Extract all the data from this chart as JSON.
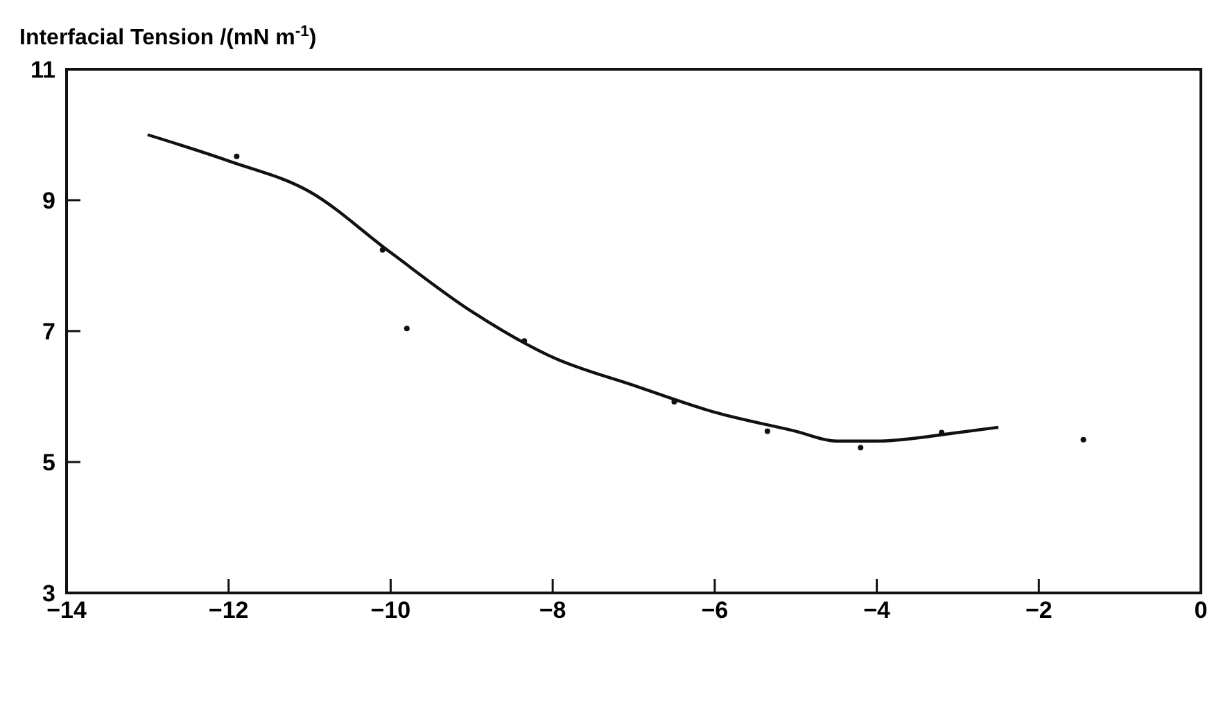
{
  "chart_data": {
    "type": "line",
    "ylabel": "Interfacial Tension /(mN m$^{-1}$)",
    "xlim": [
      -14,
      0
    ],
    "xticks": [
      -14,
      -12,
      -10,
      -8,
      -6,
      -4,
      -2,
      0
    ],
    "ylim": [
      3,
      11
    ],
    "yticks": [
      3,
      5,
      7,
      9,
      11
    ],
    "grid": false,
    "series": [
      {
        "color": "#111111",
        "marker": "none",
        "line_style": "solid",
        "x": [
          -13,
          -12,
          -11,
          -10,
          -9,
          -8,
          -7,
          -6,
          -5,
          -4.5,
          -4,
          -3,
          -2.5
        ],
        "values": [
          10.0,
          9.6,
          9.13,
          8.2,
          7.3,
          6.6,
          6.17,
          5.76,
          5.47,
          5.32,
          5.32,
          5.45,
          5.53
        ]
      },
      {
        "type": "scatter",
        "color": "#111111",
        "marker": "circle",
        "x": [
          -11.9,
          -10.1,
          -9.8,
          -8.35,
          -6.5,
          -5.35,
          -4.2,
          -3.2,
          -1.45
        ],
        "values": [
          9.67,
          8.24,
          7.04,
          6.85,
          5.92,
          5.47,
          5.22,
          5.45,
          5.34
        ]
      }
    ]
  }
}
